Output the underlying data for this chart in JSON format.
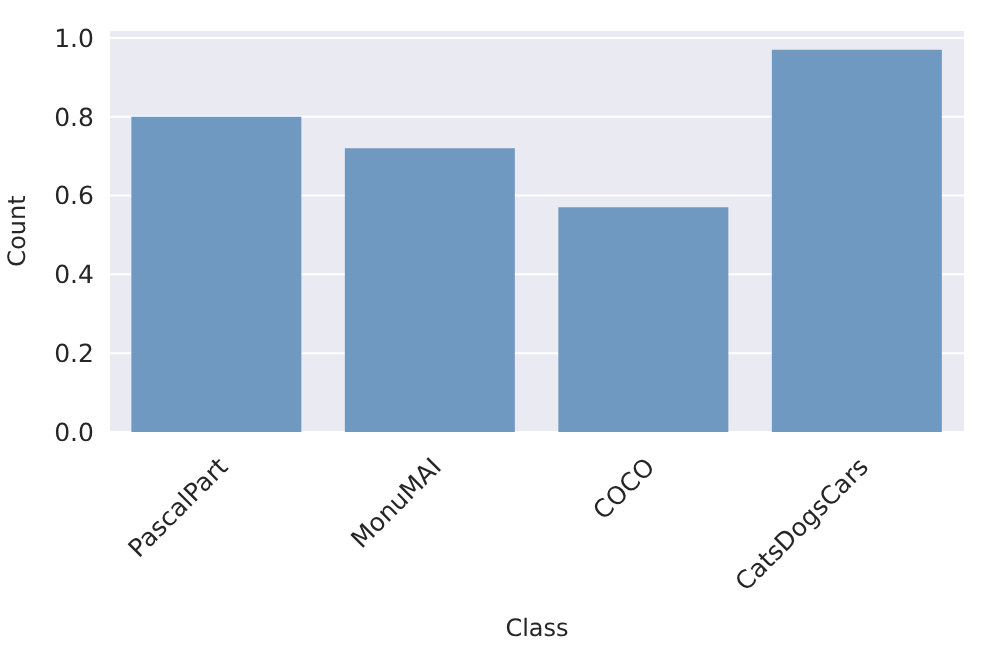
{
  "chart_data": {
    "type": "bar",
    "xlabel": "Class",
    "ylabel": "Count",
    "categories": [
      "PascalPart",
      "MonuMAI",
      "COCO",
      "CatsDogsCars"
    ],
    "values": [
      0.8,
      0.72,
      0.57,
      0.97
    ],
    "color": "#7099c2",
    "ylim": [
      0,
      1.02
    ],
    "yticks": [
      {
        "value": 0,
        "label": "0.0"
      },
      {
        "value": 0.2,
        "label": "0.2"
      },
      {
        "value": 0.4,
        "label": "0.4"
      },
      {
        "value": 0.6,
        "label": "0.6"
      },
      {
        "value": 0.8,
        "label": "0.8"
      },
      {
        "value": 1,
        "label": "1.0"
      }
    ],
    "grid": "y"
  }
}
